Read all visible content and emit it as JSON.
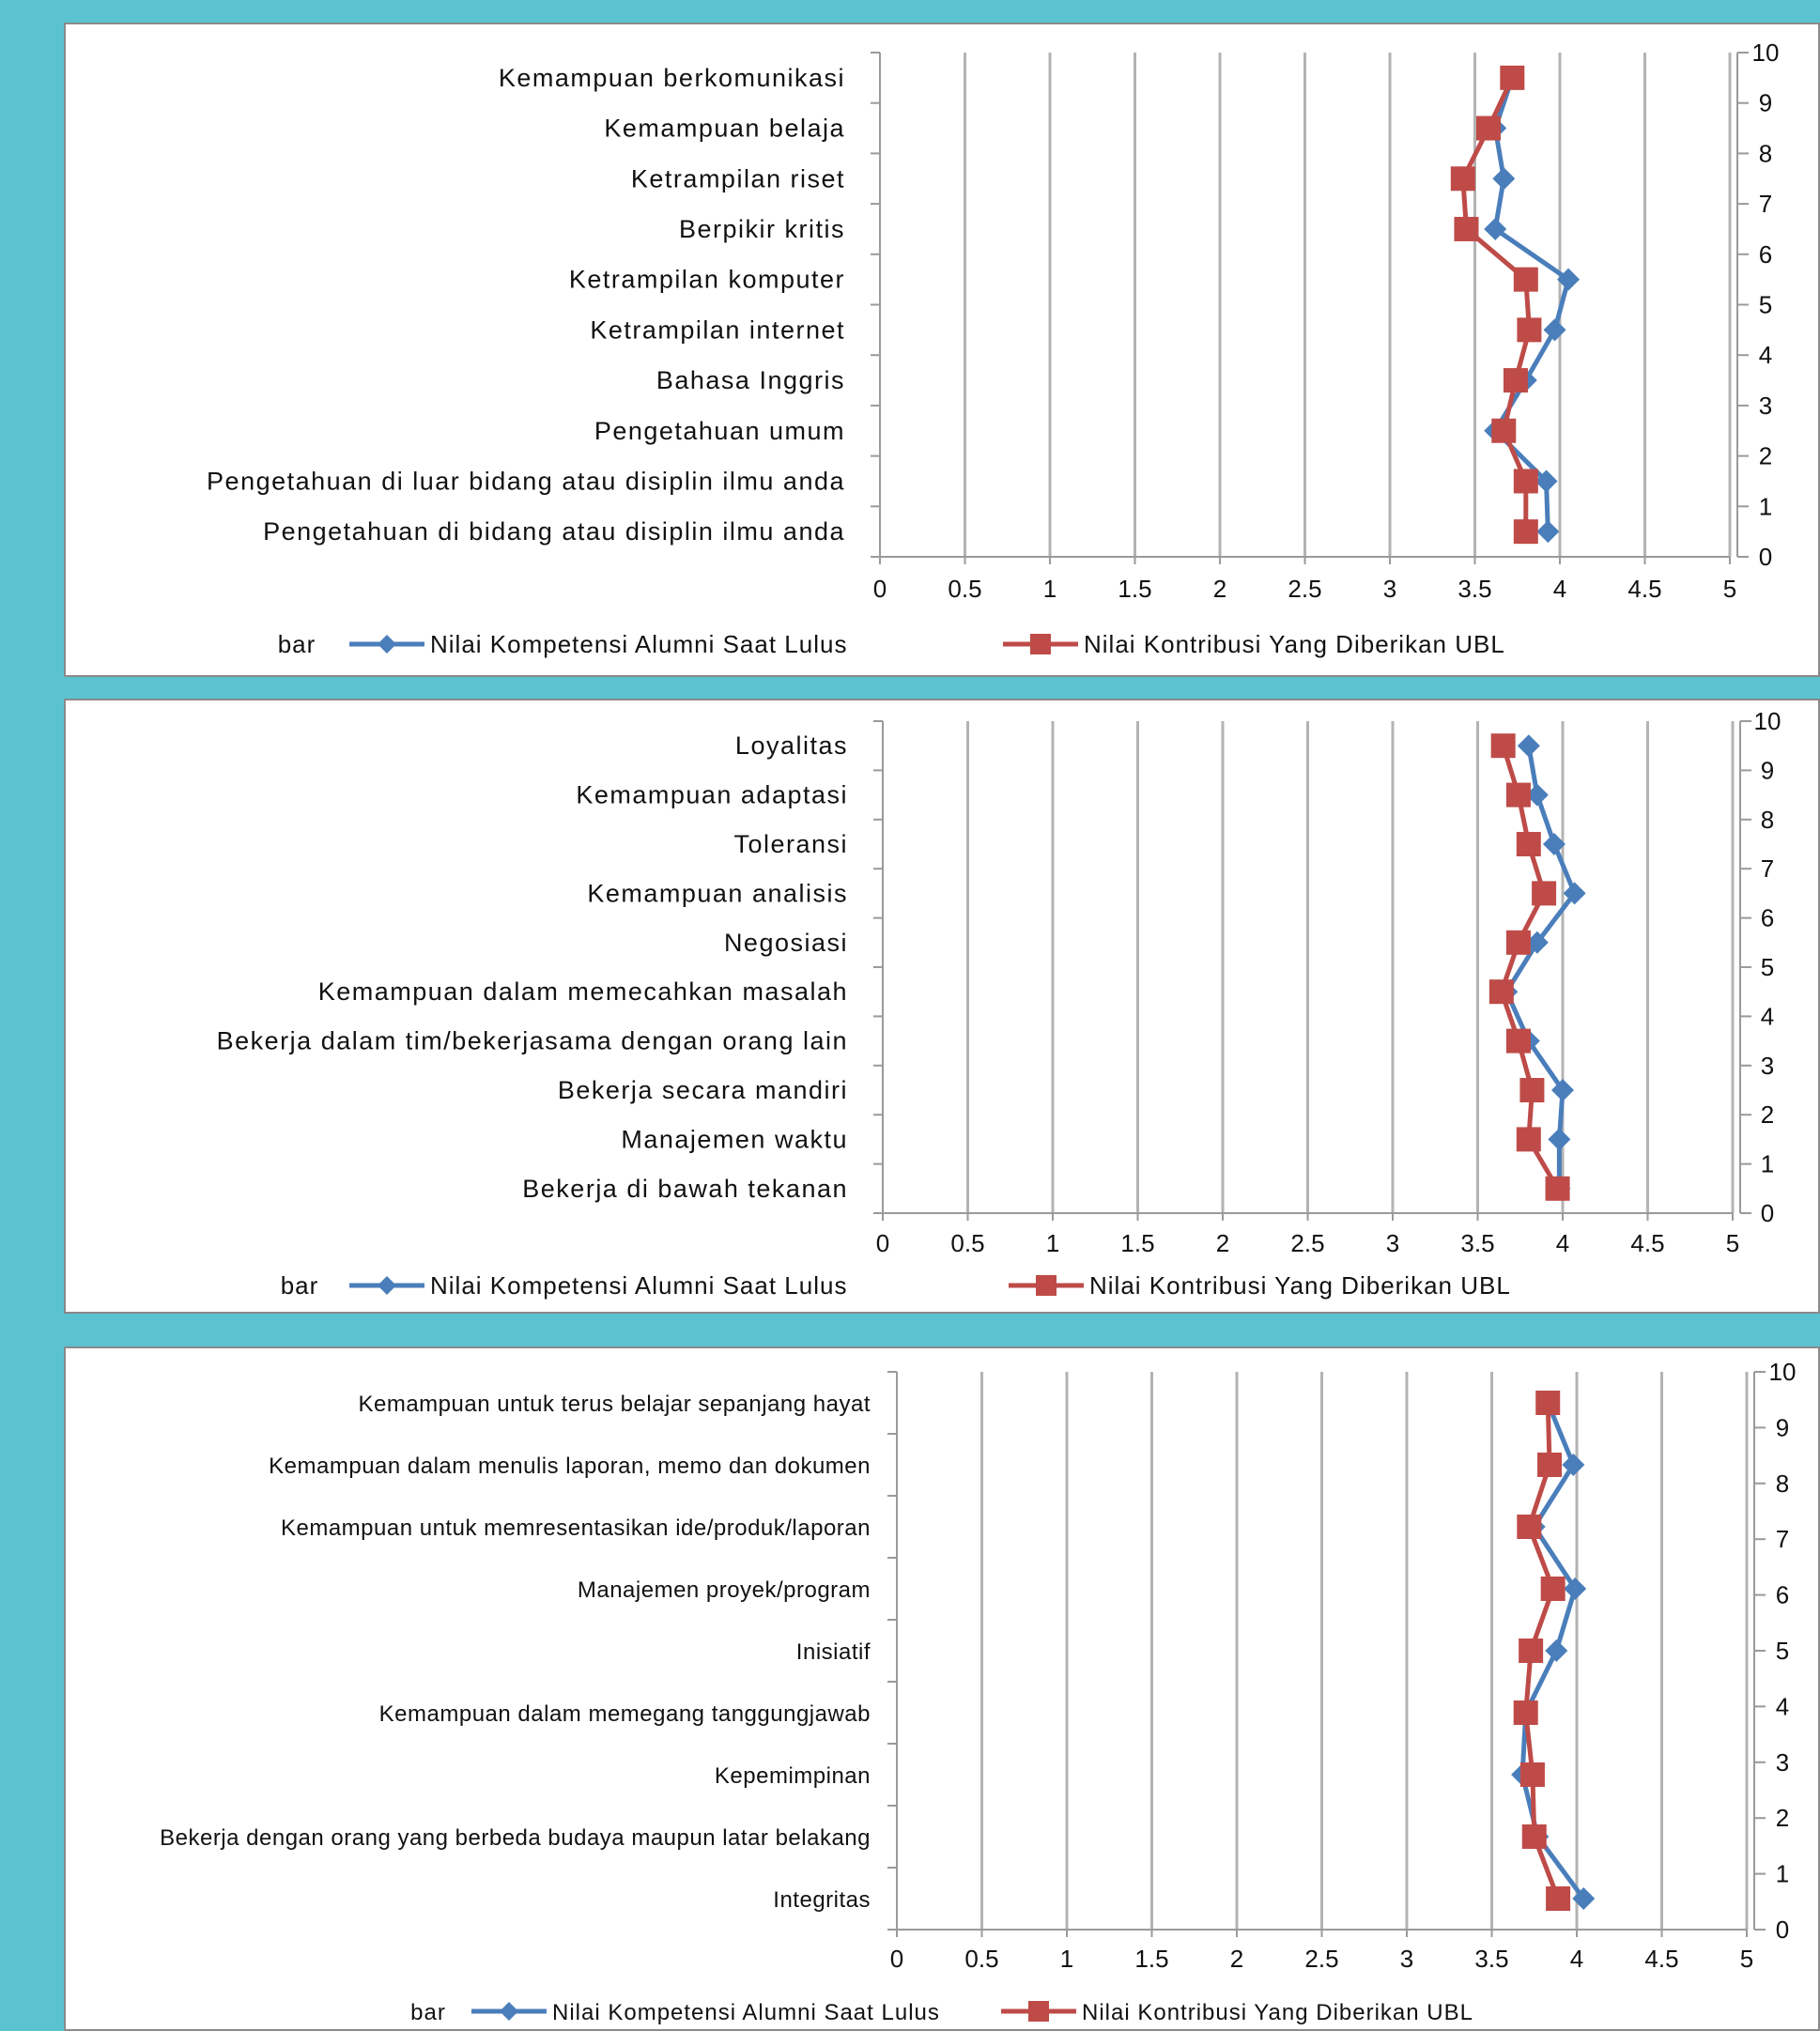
{
  "chart_data": [
    {
      "type": "line",
      "orientation": "horizontal-categories",
      "categories": [
        "Kemampuan berkomunikasi",
        "Kemampuan belaja",
        "Ketrampilan riset",
        "Berpikir kritis",
        "Ketrampilan komputer",
        "Ketrampilan internet",
        "Bahasa Inggris",
        "Pengetahuan umum",
        "Pengetahuan di luar bidang atau disiplin ilmu anda",
        "Pengetahuan di bidang atau disiplin ilmu anda"
      ],
      "xlim": [
        0,
        5
      ],
      "x_ticks": [
        "0",
        "0.5",
        "1",
        "1.5",
        "2",
        "2.5",
        "3",
        "3.5",
        "4",
        "4.5",
        "5"
      ],
      "y2lim": [
        0,
        10
      ],
      "y2_ticks": [
        "0",
        "1",
        "2",
        "3",
        "4",
        "5",
        "6",
        "7",
        "8",
        "9",
        "10"
      ],
      "grid": true,
      "legend_position": "bottom",
      "legend_extra": "bar",
      "series": [
        {
          "name": "Nilai Kompetensi Alumni Saat Lulus",
          "color": "#4a7ebb",
          "marker": "diamond",
          "values": [
            3.72,
            3.62,
            3.67,
            3.62,
            4.05,
            3.97,
            3.8,
            3.62,
            3.92,
            3.93
          ]
        },
        {
          "name": "Nilai Kontribusi Yang Diberikan UBL",
          "color": "#be4b48",
          "marker": "square",
          "values": [
            3.72,
            3.58,
            3.43,
            3.45,
            3.8,
            3.82,
            3.74,
            3.67,
            3.8,
            3.8
          ]
        }
      ]
    },
    {
      "type": "line",
      "orientation": "horizontal-categories",
      "categories": [
        "Loyalitas",
        "Kemampuan adaptasi",
        "Toleransi",
        "Kemampuan analisis",
        "Negosiasi",
        "Kemampuan dalam memecahkan masalah",
        "Bekerja dalam tim/bekerjasama dengan orang lain",
        "Bekerja secara mandiri",
        "Manajemen waktu",
        "Bekerja di bawah tekanan"
      ],
      "xlim": [
        0,
        5
      ],
      "x_ticks": [
        "0",
        "0.5",
        "1",
        "1.5",
        "2",
        "2.5",
        "3",
        "3.5",
        "4",
        "4.5",
        "5"
      ],
      "y2lim": [
        0,
        10
      ],
      "y2_ticks": [
        "0",
        "1",
        "2",
        "3",
        "4",
        "5",
        "6",
        "7",
        "8",
        "9",
        "10"
      ],
      "grid": true,
      "legend_position": "bottom",
      "legend_extra": "bar",
      "series": [
        {
          "name": "Nilai Kompetensi Alumni Saat Lulus",
          "color": "#4a7ebb",
          "marker": "diamond",
          "values": [
            3.8,
            3.85,
            3.95,
            4.07,
            3.85,
            3.67,
            3.8,
            4.0,
            3.98,
            3.98
          ]
        },
        {
          "name": "Nilai Kontribusi Yang Diberikan UBL",
          "color": "#be4b48",
          "marker": "square",
          "values": [
            3.65,
            3.74,
            3.8,
            3.89,
            3.74,
            3.64,
            3.74,
            3.82,
            3.8,
            3.97
          ]
        }
      ]
    },
    {
      "type": "line",
      "orientation": "horizontal-categories",
      "categories": [
        "Kemampuan untuk terus belajar sepanjang hayat",
        "Kemampuan dalam menulis laporan, memo dan dokumen",
        "Kemampuan untuk memresentasikan ide/produk/laporan",
        "Manajemen proyek/program",
        "Inisiatif",
        "Kemampuan dalam memegang tanggungjawab",
        "Kepemimpinan",
        "Bekerja dengan orang yang berbeda budaya maupun latar belakang",
        "Integritas"
      ],
      "xlim": [
        0,
        5
      ],
      "x_ticks": [
        "0",
        "0.5",
        "1",
        "1.5",
        "2",
        "2.5",
        "3",
        "3.5",
        "4",
        "4.5",
        "5"
      ],
      "y2lim": [
        0,
        10
      ],
      "y2_ticks": [
        "0",
        "1",
        "2",
        "3",
        "4",
        "5",
        "6",
        "7",
        "8",
        "9",
        "10"
      ],
      "grid": true,
      "legend_position": "bottom",
      "legend_extra": "bar",
      "series": [
        {
          "name": "Nilai Kompetensi Alumni Saat Lulus",
          "color": "#4a7ebb",
          "marker": "diamond",
          "values": [
            3.83,
            3.98,
            3.75,
            3.99,
            3.88,
            3.7,
            3.68,
            3.77,
            4.04
          ]
        },
        {
          "name": "Nilai Kontribusi Yang Diberikan UBL",
          "color": "#be4b48",
          "marker": "square",
          "values": [
            3.83,
            3.84,
            3.72,
            3.86,
            3.73,
            3.7,
            3.74,
            3.75,
            3.89
          ]
        }
      ]
    }
  ]
}
